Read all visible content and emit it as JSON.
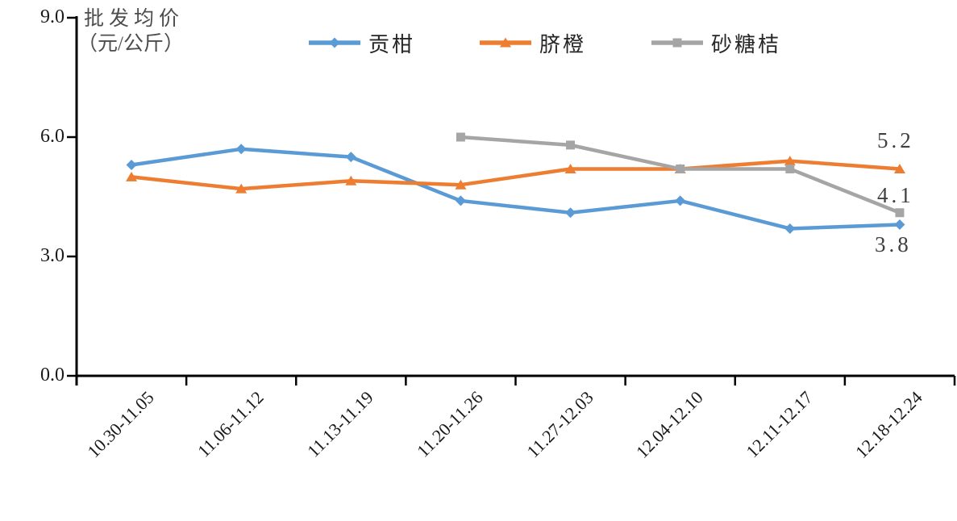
{
  "chart_data": {
    "type": "line",
    "title": "",
    "ylabel_lines": [
      "批发均价",
      "（元/公斤）"
    ],
    "y_ticks": [
      "0.0",
      "3.0",
      "6.0",
      "9.0"
    ],
    "ylim": [
      0,
      9
    ],
    "grid": false,
    "legend_position": "top",
    "categories": [
      "10.30-11.05",
      "11.06-11.12",
      "11.13-11.19",
      "11.20-11.26",
      "11.27-12.03",
      "12.04-12.10",
      "12.11-12.17",
      "12.18-12.24"
    ],
    "series": [
      {
        "name": "贡柑",
        "color": "#5B9BD5",
        "marker": "diamond",
        "values": [
          5.3,
          5.7,
          5.5,
          4.4,
          4.1,
          4.4,
          3.7,
          3.8
        ]
      },
      {
        "name": "脐橙",
        "color": "#ED7D31",
        "marker": "triangle",
        "values": [
          5.0,
          4.7,
          4.9,
          4.8,
          5.2,
          5.2,
          5.4,
          5.2
        ]
      },
      {
        "name": "砂糖桔",
        "color": "#A5A5A5",
        "marker": "square",
        "values": [
          null,
          null,
          null,
          6.0,
          5.8,
          5.2,
          5.2,
          4.1
        ]
      }
    ],
    "annotations": [
      {
        "text": "5.2",
        "series": "脐橙"
      },
      {
        "text": "4.1",
        "series": "砂糖桔"
      },
      {
        "text": "3.8",
        "series": "贡柑"
      }
    ]
  },
  "colors": {
    "axis": "#000000",
    "tick_label": "#1a1a1a",
    "axis_title": "#4d4d4d",
    "annotation": "#3f3f3f"
  }
}
